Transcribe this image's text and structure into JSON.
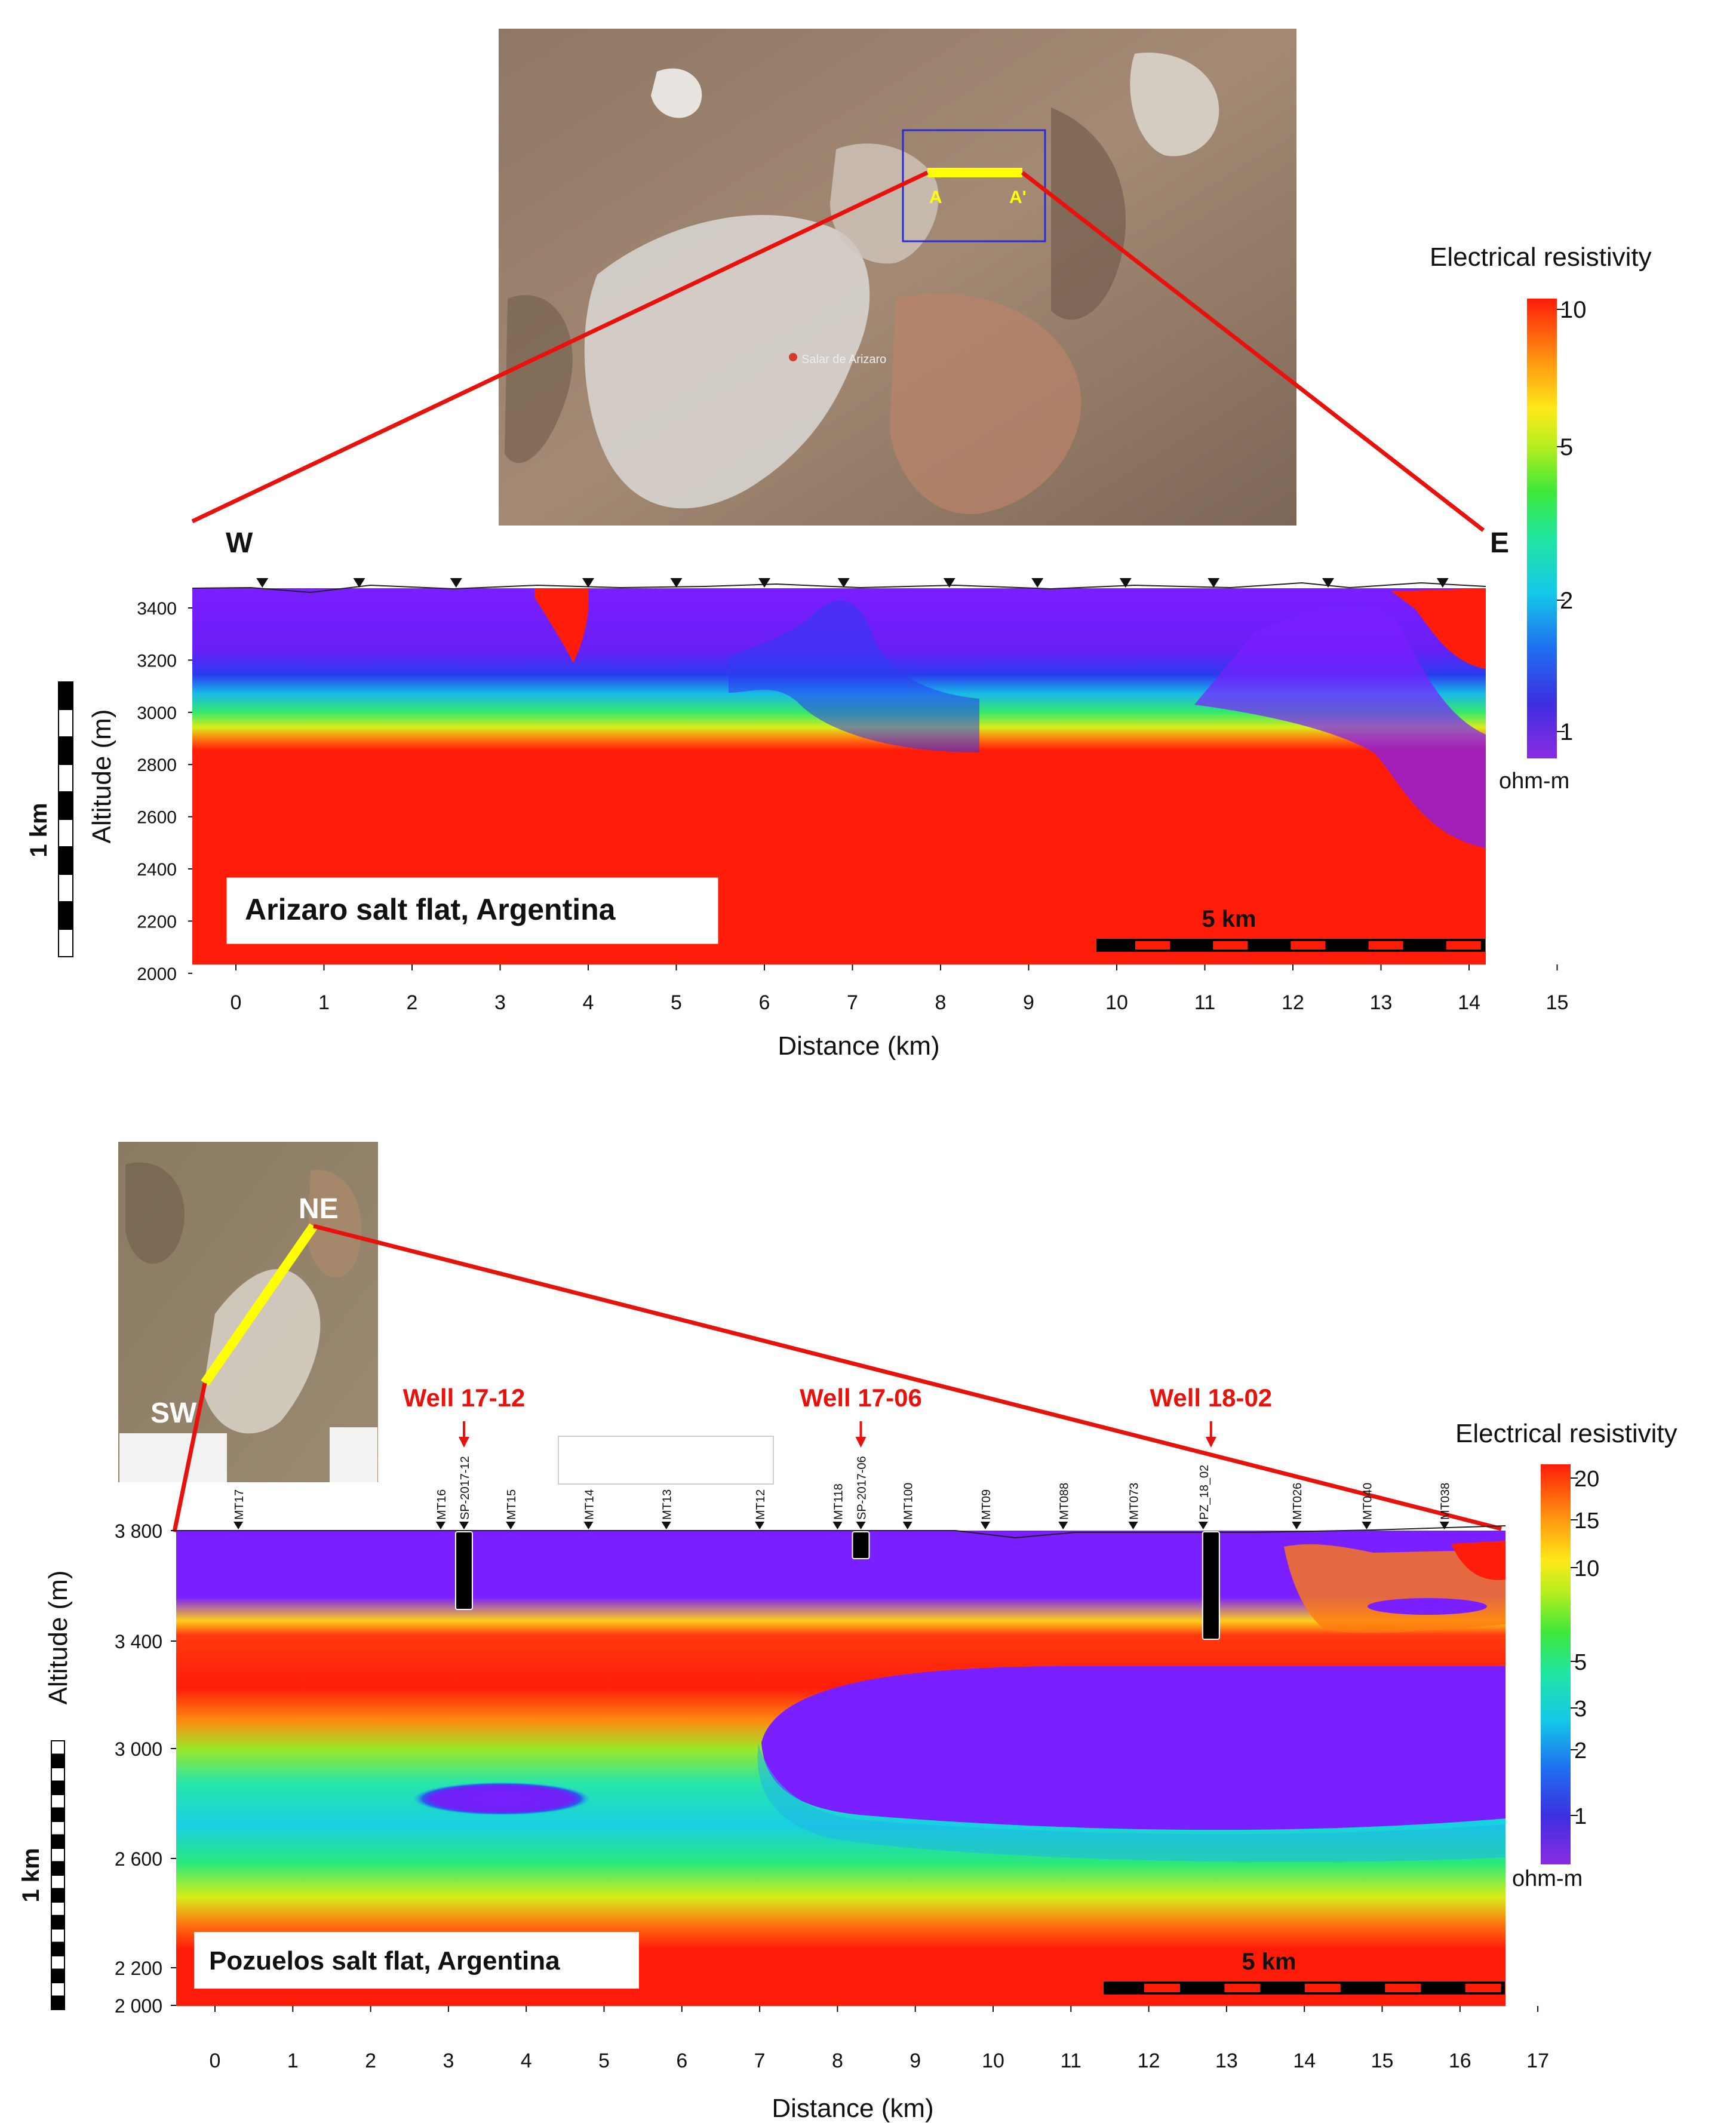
{
  "top": {
    "map": {
      "point_label_a": "A",
      "point_label_a_prime": "A'",
      "place_label": "Salar de Arizaro",
      "colors": {
        "profile_line": "#ffff00",
        "box": "#2b2bd6",
        "leader": "#e8120c"
      }
    },
    "section": {
      "label_west": "W",
      "label_east": "E",
      "ylabel": "Altitude (m)",
      "xlabel": "Distance (km)",
      "yticks": [
        "3400",
        "3200",
        "3000",
        "2800",
        "2600",
        "2400",
        "2200",
        "2000"
      ],
      "xticks": [
        "0",
        "1",
        "2",
        "3",
        "4",
        "5",
        "6",
        "7",
        "8",
        "9",
        "10",
        "11",
        "12",
        "13",
        "14",
        "15"
      ],
      "title_box": "Arizaro salt flat, Argentina",
      "scale_bar": "5 km",
      "vertical_scale": "1 km",
      "station_km": [
        0.3,
        1.4,
        2.5,
        4.0,
        5.0,
        6.0,
        6.9,
        8.1,
        9.1,
        10.1,
        11.1,
        12.4,
        13.7
      ]
    },
    "legend": {
      "title": "Electrical resistivity",
      "ticks": [
        "10",
        "5",
        "2",
        "1"
      ],
      "unit": "ohm-m"
    }
  },
  "bottom": {
    "map": {
      "label_ne": "NE",
      "label_sw": "SW",
      "colors": {
        "profile_line": "#ffff00",
        "leader": "#e8120c"
      }
    },
    "wells": [
      {
        "name": "Well 17-12",
        "km": 3.2
      },
      {
        "name": "Well 17-06",
        "km": 8.3
      },
      {
        "name": "Well 18-02",
        "km": 12.8
      }
    ],
    "stations": [
      {
        "label": "MT17",
        "km": 0.3
      },
      {
        "label": "MT16",
        "km": 2.9
      },
      {
        "label": "SP-2017-12",
        "km": 3.2
      },
      {
        "label": "MT15",
        "km": 3.8
      },
      {
        "label": "MT14",
        "km": 4.8
      },
      {
        "label": "MT13",
        "km": 5.8
      },
      {
        "label": "MT12",
        "km": 7.0
      },
      {
        "label": "MT118",
        "km": 8.0
      },
      {
        "label": "SP-2017-06",
        "km": 8.3
      },
      {
        "label": "MT100",
        "km": 8.9
      },
      {
        "label": "MT09",
        "km": 9.9
      },
      {
        "label": "MT088",
        "km": 10.9
      },
      {
        "label": "MT073",
        "km": 11.8
      },
      {
        "label": "PZ_18_02",
        "km": 12.7
      },
      {
        "label": "MT026",
        "km": 13.9
      },
      {
        "label": "MT040",
        "km": 14.8
      },
      {
        "label": "MT038",
        "km": 15.8
      }
    ],
    "section": {
      "ylabel": "Altitude (m)",
      "xlabel": "Distance (km)",
      "yticks": [
        "3 800",
        "3 400",
        "3 000",
        "2 600",
        "2 200",
        "2 000"
      ],
      "xticks": [
        "0",
        "1",
        "2",
        "3",
        "4",
        "5",
        "6",
        "7",
        "8",
        "9",
        "10",
        "11",
        "12",
        "13",
        "14",
        "15",
        "16",
        "17"
      ],
      "title_box": "Pozuelos salt flat, Argentina",
      "scale_bar": "5 km",
      "vertical_scale": "1 km"
    },
    "legend": {
      "title": "Electrical resistivity",
      "ticks": [
        "20",
        "15",
        "10",
        "5",
        "3",
        "2",
        "1"
      ],
      "unit": "ohm-m"
    }
  }
}
